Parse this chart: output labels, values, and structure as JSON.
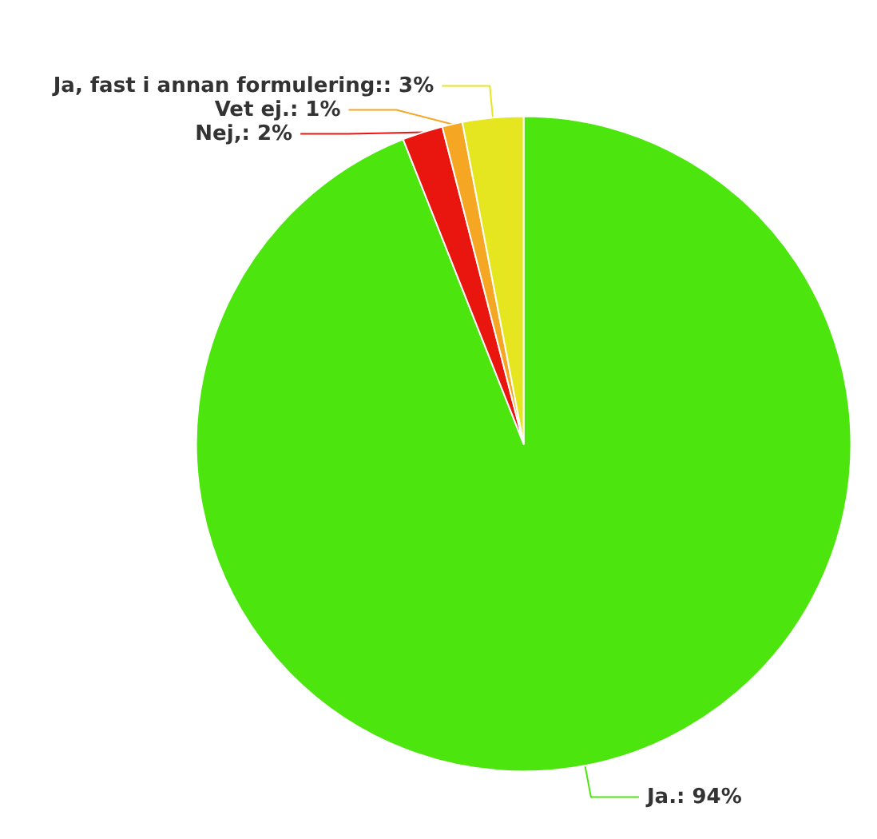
{
  "chart_data": {
    "type": "pie",
    "categories": [
      "Ja.",
      "Nej",
      "Vet ej.",
      "Ja, fast i annan formulering"
    ],
    "values": [
      94,
      2,
      1,
      3
    ],
    "value_labels": [
      ": 94%",
      ",: 2%",
      ": 1%",
      ":: 3%"
    ],
    "colors": [
      "#4ce60e",
      "#e8160f",
      "#f5a623",
      "#e6e620"
    ],
    "legend": false
  }
}
